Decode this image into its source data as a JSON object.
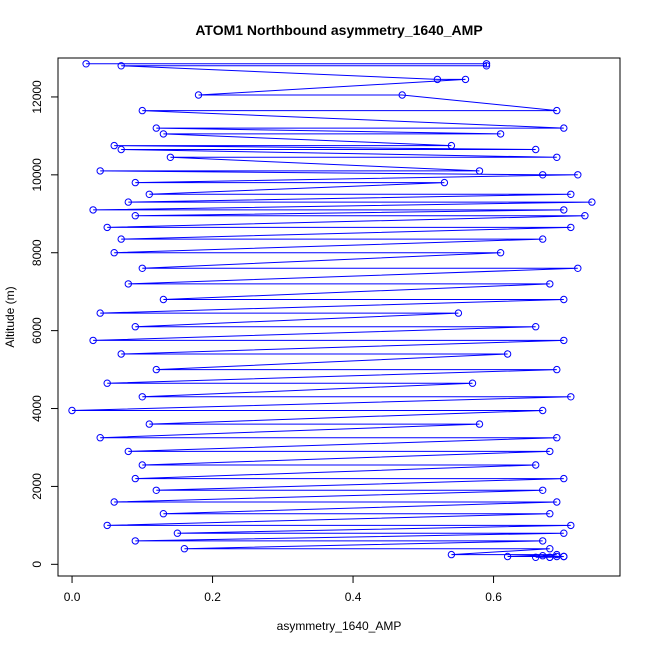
{
  "chart_data": {
    "type": "line",
    "title": "ATOM1 Northbound asymmetry_1640_AMP",
    "xlabel": "asymmetry_1640_AMP",
    "ylabel": "Altitude (m)",
    "xlim": [
      -0.02,
      0.78
    ],
    "ylim": [
      -300,
      13000
    ],
    "xticks": [
      0.0,
      0.2,
      0.4,
      0.6
    ],
    "xtick_labels": [
      "0.0",
      "0.2",
      "0.4",
      "0.6"
    ],
    "yticks": [
      0,
      2000,
      4000,
      6000,
      8000,
      10000,
      12000
    ],
    "ytick_labels": [
      "0",
      "2000",
      "4000",
      "6000",
      "8000",
      "10000",
      "12000"
    ],
    "grid": false,
    "legend": "none",
    "series_color": "#0000ff",
    "markers": "open-circle",
    "series": [
      {
        "x": [
          0.02,
          0.59,
          0.59,
          0.07,
          0.52,
          0.56,
          0.18,
          0.47,
          0.69,
          0.1,
          0.7,
          0.12,
          0.61,
          0.13,
          0.54,
          0.06,
          0.66,
          0.07,
          0.69,
          0.14,
          0.58,
          0.04,
          0.67,
          0.72,
          0.09,
          0.53,
          0.11,
          0.71,
          0.08,
          0.74,
          0.03,
          0.7,
          0.09,
          0.73,
          0.05,
          0.71,
          0.07,
          0.67,
          0.06,
          0.61,
          0.1,
          0.72,
          0.08,
          0.68,
          0.13,
          0.7,
          0.04,
          0.55,
          0.09,
          0.66,
          0.03,
          0.7,
          0.07,
          0.62,
          0.12,
          0.69,
          0.05,
          0.57,
          0.1,
          0.71,
          0.0,
          0.67,
          0.11,
          0.58,
          0.04,
          0.69,
          0.08,
          0.68,
          0.1,
          0.66,
          0.09,
          0.7,
          0.12,
          0.67,
          0.06,
          0.69,
          0.13,
          0.68,
          0.05,
          0.71,
          0.15,
          0.7,
          0.09,
          0.67,
          0.16,
          0.68,
          0.54,
          0.69,
          0.62,
          0.7,
          0.66,
          0.68,
          0.69,
          0.67,
          0.7,
          0.68
        ],
        "y": [
          12850,
          12850,
          12800,
          12800,
          12450,
          12450,
          12050,
          12050,
          11650,
          11650,
          11200,
          11200,
          11050,
          11050,
          10750,
          10750,
          10650,
          10650,
          10450,
          10450,
          10100,
          10100,
          10000,
          10000,
          9800,
          9800,
          9500,
          9500,
          9300,
          9300,
          9100,
          9100,
          8950,
          8950,
          8650,
          8650,
          8350,
          8350,
          8000,
          8000,
          7600,
          7600,
          7200,
          7200,
          6800,
          6800,
          6450,
          6450,
          6100,
          6100,
          5750,
          5750,
          5400,
          5400,
          5000,
          5000,
          4650,
          4650,
          4300,
          4300,
          3950,
          3950,
          3600,
          3600,
          3250,
          3250,
          2900,
          2900,
          2550,
          2550,
          2200,
          2200,
          1900,
          1900,
          1600,
          1600,
          1300,
          1300,
          1000,
          1000,
          800,
          800,
          600,
          600,
          400,
          400,
          250,
          250,
          200,
          200,
          180,
          180,
          200,
          220,
          200,
          180
        ]
      }
    ]
  }
}
